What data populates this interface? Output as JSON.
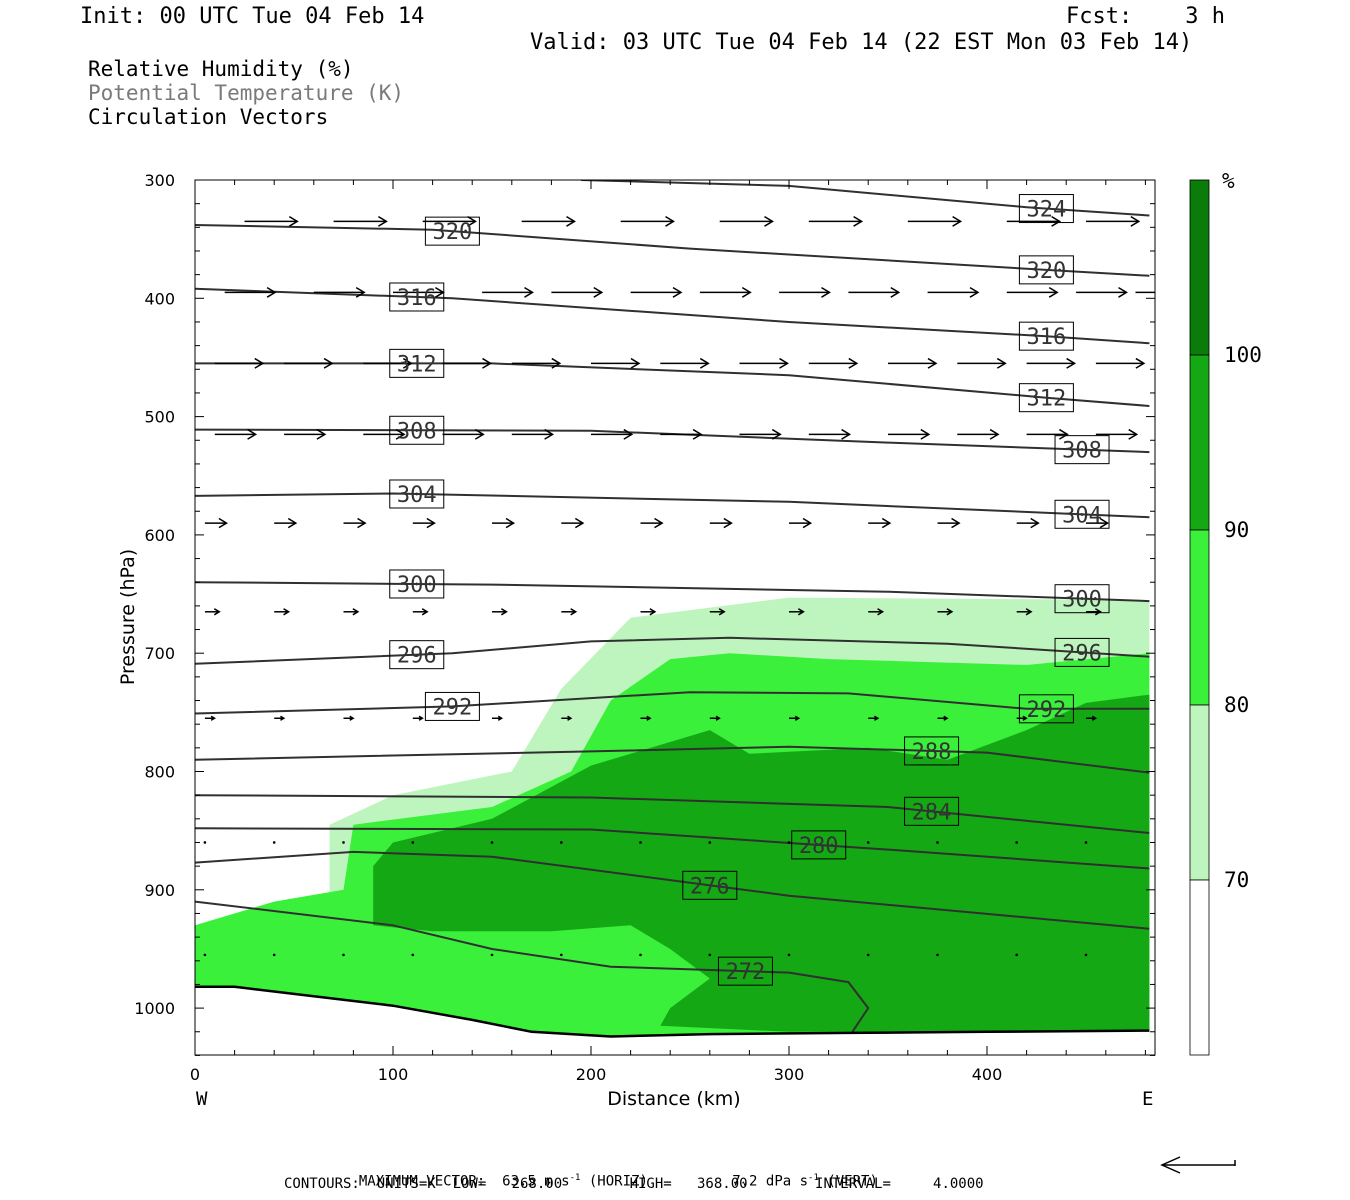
{
  "header": {
    "init": "Init: 00 UTC Tue 04 Feb 14",
    "fcst": "Fcst:    3 h",
    "valid": "Valid: 03 UTC Tue 04 Feb 14 (22 EST Mon 03 Feb 14)"
  },
  "legend": {
    "rh": "Relative Humidity (%)",
    "theta": "Potential Temperature (K)",
    "vectors": "Circulation Vectors"
  },
  "footer": {
    "max_vector_label": "MAXIMUM VECTOR:",
    "max_horiz": "63.5 m s",
    "horiz_tag": "(HORIZ)",
    "max_vert": "7.2 dPa s",
    "vert_tag": "(VERT)",
    "exp": "-1",
    "contours": "CONTOURS:  UNITS=K  LOW=   268.00        HIGH=   368.00        INTERVAL=     4.0000"
  },
  "colorbar": {
    "unit": "%",
    "ticks": [
      "100",
      "90",
      "80",
      "70"
    ],
    "colors": [
      "#0a7c0a",
      "#14a814",
      "#3af03a",
      "#bef5be",
      "#ffffff"
    ]
  },
  "chart_data": {
    "type": "cross-section",
    "xlabel": "Distance (km)",
    "ylabel": "Pressure (hPa)",
    "xlim": [
      0,
      482
    ],
    "ylim": [
      1040,
      300
    ],
    "x_ticks": [
      0,
      100,
      200,
      300,
      400
    ],
    "y_ticks": [
      300,
      400,
      500,
      600,
      700,
      800,
      900,
      1000
    ],
    "west_label": "W",
    "east_label": "E",
    "theta_contours": [
      {
        "label": "324",
        "points": [
          [
            195,
            300
          ],
          [
            300,
            305
          ],
          [
            420,
            323
          ],
          [
            482,
            330
          ]
        ]
      },
      {
        "label": "320",
        "points": [
          [
            0,
            338
          ],
          [
            120,
            342
          ],
          [
            250,
            358
          ],
          [
            420,
            375
          ],
          [
            482,
            381
          ]
        ]
      },
      {
        "label": "316",
        "points": [
          [
            0,
            392
          ],
          [
            130,
            400
          ],
          [
            300,
            420
          ],
          [
            430,
            432
          ],
          [
            482,
            438
          ]
        ]
      },
      {
        "label": "312",
        "points": [
          [
            0,
            455
          ],
          [
            150,
            455
          ],
          [
            300,
            465
          ],
          [
            430,
            484
          ],
          [
            482,
            491
          ]
        ]
      },
      {
        "label": "308",
        "points": [
          [
            0,
            511
          ],
          [
            200,
            512
          ],
          [
            350,
            522
          ],
          [
            482,
            530
          ]
        ]
      },
      {
        "label": "304",
        "points": [
          [
            0,
            567
          ],
          [
            100,
            565
          ],
          [
            300,
            572
          ],
          [
            482,
            585
          ]
        ]
      },
      {
        "label": "300",
        "points": [
          [
            0,
            640
          ],
          [
            150,
            642
          ],
          [
            350,
            648
          ],
          [
            482,
            656
          ]
        ]
      },
      {
        "label": "296",
        "points": [
          [
            0,
            709
          ],
          [
            130,
            700
          ],
          [
            200,
            690
          ],
          [
            270,
            687
          ],
          [
            380,
            692
          ],
          [
            482,
            703
          ]
        ]
      },
      {
        "label": "292",
        "points": [
          [
            0,
            751
          ],
          [
            130,
            745
          ],
          [
            250,
            733
          ],
          [
            330,
            734
          ],
          [
            420,
            747
          ],
          [
            482,
            747
          ]
        ]
      },
      {
        "label": "288",
        "points": [
          [
            0,
            790
          ],
          [
            200,
            783
          ],
          [
            300,
            779
          ],
          [
            400,
            784
          ],
          [
            482,
            801
          ]
        ]
      },
      {
        "label": "284",
        "points": [
          [
            0,
            820
          ],
          [
            200,
            822
          ],
          [
            350,
            830
          ],
          [
            482,
            852
          ]
        ]
      },
      {
        "label": "280",
        "points": [
          [
            0,
            848
          ],
          [
            200,
            849
          ],
          [
            350,
            866
          ],
          [
            482,
            882
          ]
        ]
      },
      {
        "label": "276",
        "points": [
          [
            0,
            877
          ],
          [
            80,
            868
          ],
          [
            150,
            872
          ],
          [
            300,
            905
          ],
          [
            482,
            933
          ]
        ]
      },
      {
        "label": "272",
        "points": [
          [
            0,
            910
          ],
          [
            100,
            930
          ],
          [
            150,
            950
          ],
          [
            210,
            965
          ],
          [
            300,
            970
          ],
          [
            330,
            978
          ],
          [
            340,
            1000
          ],
          [
            332,
            1020
          ]
        ]
      }
    ],
    "rh_bands": [
      {
        "range": "70-80",
        "polygon": [
          [
            0,
            930
          ],
          [
            0,
            1008
          ],
          [
            150,
            1025
          ],
          [
            482,
            1027
          ],
          [
            482,
            655
          ],
          [
            300,
            653
          ],
          [
            220,
            670
          ],
          [
            185,
            730
          ],
          [
            160,
            800
          ],
          [
            100,
            820
          ],
          [
            68,
            845
          ],
          [
            68,
            920
          ],
          [
            40,
            925
          ]
        ]
      },
      {
        "range": "80-90",
        "polygon": [
          [
            0,
            930
          ],
          [
            0,
            1008
          ],
          [
            150,
            1025
          ],
          [
            482,
            1027
          ],
          [
            482,
            700
          ],
          [
            420,
            710
          ],
          [
            320,
            705
          ],
          [
            270,
            700
          ],
          [
            240,
            705
          ],
          [
            210,
            740
          ],
          [
            190,
            800
          ],
          [
            150,
            830
          ],
          [
            80,
            845
          ],
          [
            75,
            900
          ],
          [
            40,
            910
          ]
        ]
      },
      {
        "range": "90-100",
        "polygon": [
          [
            90,
            930
          ],
          [
            120,
            935
          ],
          [
            180,
            935
          ],
          [
            220,
            930
          ],
          [
            240,
            950
          ],
          [
            260,
            975
          ],
          [
            240,
            1000
          ],
          [
            235,
            1015
          ],
          [
            300,
            1020
          ],
          [
            400,
            1020
          ],
          [
            482,
            1018
          ],
          [
            482,
            735
          ],
          [
            450,
            742
          ],
          [
            420,
            765
          ],
          [
            380,
            790
          ],
          [
            340,
            780
          ],
          [
            280,
            785
          ],
          [
            260,
            765
          ],
          [
            200,
            795
          ],
          [
            150,
            840
          ],
          [
            100,
            860
          ],
          [
            90,
            880
          ]
        ]
      }
    ],
    "vector_levels": [
      {
        "p": 335,
        "x": [
          25,
          70,
          115,
          165,
          215,
          265,
          310,
          360,
          410,
          450
        ],
        "u": 22,
        "v": 0
      },
      {
        "p": 395,
        "x": [
          15,
          60,
          100,
          145,
          180,
          220,
          255,
          295,
          330,
          370,
          410,
          445,
          475
        ],
        "u": 21,
        "v": 0
      },
      {
        "p": 455,
        "x": [
          10,
          45,
          85,
          125,
          160,
          200,
          235,
          275,
          310,
          350,
          385,
          420,
          455
        ],
        "u": 20,
        "v": 0
      },
      {
        "p": 515,
        "x": [
          10,
          45,
          85,
          125,
          160,
          200,
          235,
          275,
          310,
          350,
          385,
          420,
          455
        ],
        "u": 17,
        "v": 0
      },
      {
        "p": 590,
        "x": [
          5,
          40,
          75,
          110,
          150,
          185,
          225,
          260,
          300,
          340,
          375,
          415,
          450
        ],
        "u": 9,
        "v": 0
      },
      {
        "p": 665,
        "x": [
          5,
          40,
          75,
          110,
          150,
          185,
          225,
          260,
          300,
          340,
          375,
          415,
          450
        ],
        "u": 6,
        "v": 0
      },
      {
        "p": 755,
        "x": [
          5,
          40,
          75,
          110,
          150,
          185,
          225,
          260,
          300,
          340,
          375,
          415,
          450
        ],
        "u": 4,
        "v": 0
      },
      {
        "p": 860,
        "x": [
          5,
          40,
          75,
          110,
          150,
          185,
          225,
          260,
          300,
          340,
          375,
          415,
          450
        ],
        "u": 1,
        "v": 0
      },
      {
        "p": 955,
        "x": [
          5,
          40,
          75,
          110,
          150,
          185,
          225,
          260,
          300,
          340,
          375,
          415,
          450
        ],
        "u": 1,
        "v": 0
      }
    ],
    "terrain": [
      [
        0,
        982
      ],
      [
        20,
        982
      ],
      [
        60,
        990
      ],
      [
        100,
        998
      ],
      [
        140,
        1010
      ],
      [
        170,
        1020
      ],
      [
        210,
        1024
      ],
      [
        260,
        1022
      ],
      [
        330,
        1021
      ],
      [
        400,
        1020
      ],
      [
        482,
        1019
      ]
    ],
    "reference_vector": "leftward"
  }
}
